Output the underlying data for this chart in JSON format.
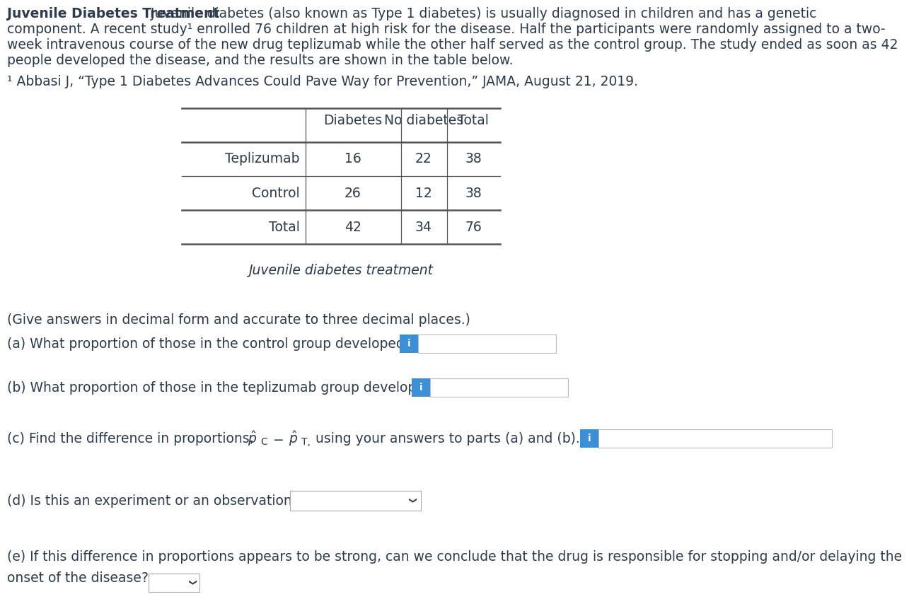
{
  "bg_color": "#ffffff",
  "text_color": "#2d3a4a",
  "title_bold": "Juvenile Diabetes Treatment",
  "footnote": "¹ Abbasi J, “Type 1 Diabetes Advances Could Pave Way for Prevention,” JAMA, August 21, 2019.",
  "table_caption": "Juvenile diabetes treatment",
  "table_headers": [
    "",
    "Diabetes",
    "No diabetes",
    "Total"
  ],
  "table_rows": [
    [
      "Teplizumab",
      "16",
      "22",
      "38"
    ],
    [
      "Control",
      "26",
      "12",
      "38"
    ],
    [
      "Total",
      "42",
      "34",
      "76"
    ]
  ],
  "q_give_answers": "(Give answers in decimal form and accurate to three decimal places.)",
  "q_a": "(a) What proportion of those in the control group developed diabetes?",
  "q_b": "(b) What proportion of those in the teplizumab group developed diabetes?",
  "q_c_pre": "(c) Find the difference in proportions,",
  "q_c_post": "using your answers to parts (a) and (b).",
  "q_d": "(d) Is this an experiment or an observational study?",
  "q_e1": "(e) If this difference in proportions appears to be strong, can we conclude that the drug is responsible for stopping and/or delaying the",
  "q_e2": "onset of the disease?",
  "input_box_color": "#ffffff",
  "input_box_border": "#bbbbbb",
  "info_btn_color": "#3b8fd4",
  "info_btn_text": "i",
  "dropdown_border": "#aaaaaa",
  "line_color": "#555555",
  "para_lines": [
    "component. A recent study¹ enrolled 76 children at high risk for the disease. Half the participants were randomly assigned to a two-",
    "week intravenous course of the new drug teplizumab while the other half served as the control group. The study ended as soon as 42",
    "people developed the disease, and the results are shown in the table below."
  ],
  "para_line1_after_bold": " Juvenile diabetes (also known as Type 1 diabetes) is usually diagnosed in children and has a genetic"
}
